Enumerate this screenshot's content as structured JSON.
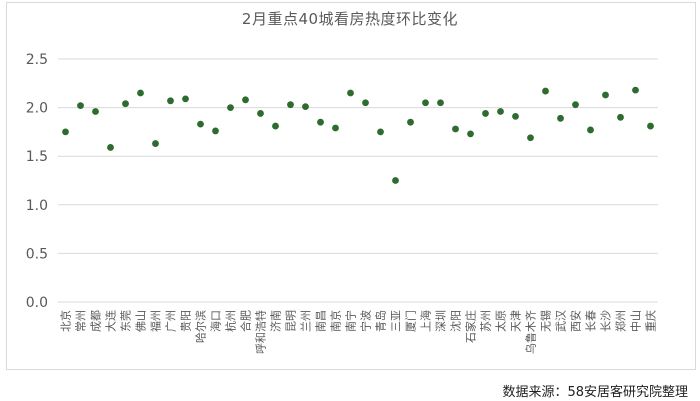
{
  "source_note": "数据来源：58安居客研究院整理",
  "chart_data": {
    "type": "scatter",
    "title": "2月重点40城看房热度环比变化",
    "xlabel": "",
    "ylabel": "",
    "ylim": [
      0.0,
      2.5
    ],
    "y_ticks": [
      "0.0",
      "0.5",
      "1.0",
      "1.5",
      "2.0",
      "2.5"
    ],
    "grid": true,
    "legend": "none",
    "marker_color": "#2e6b2e",
    "gridline_color": "#d9d9d9",
    "categories": [
      "北京",
      "常州",
      "成都",
      "大连",
      "东莞",
      "佛山",
      "福州",
      "广州",
      "贵阳",
      "哈尔滨",
      "海口",
      "杭州",
      "合肥",
      "呼和浩特",
      "济南",
      "昆明",
      "兰州",
      "南昌",
      "南京",
      "南宁",
      "宁波",
      "青岛",
      "三亚",
      "厦门",
      "上海",
      "深圳",
      "沈阳",
      "石家庄",
      "苏州",
      "太原",
      "天津",
      "乌鲁木齐",
      "无锡",
      "武汉",
      "西安",
      "长春",
      "长沙",
      "郑州",
      "中山",
      "重庆"
    ],
    "values": [
      1.75,
      2.02,
      1.96,
      1.59,
      2.04,
      2.15,
      1.63,
      2.07,
      2.09,
      1.83,
      1.76,
      2.0,
      2.08,
      1.94,
      1.81,
      2.03,
      2.01,
      1.85,
      1.79,
      2.15,
      2.05,
      1.75,
      1.25,
      1.85,
      2.05,
      2.05,
      1.78,
      1.73,
      1.94,
      1.96,
      1.91,
      1.69,
      2.17,
      1.89,
      2.03,
      1.77,
      2.13,
      1.9,
      2.18,
      1.81
    ]
  }
}
